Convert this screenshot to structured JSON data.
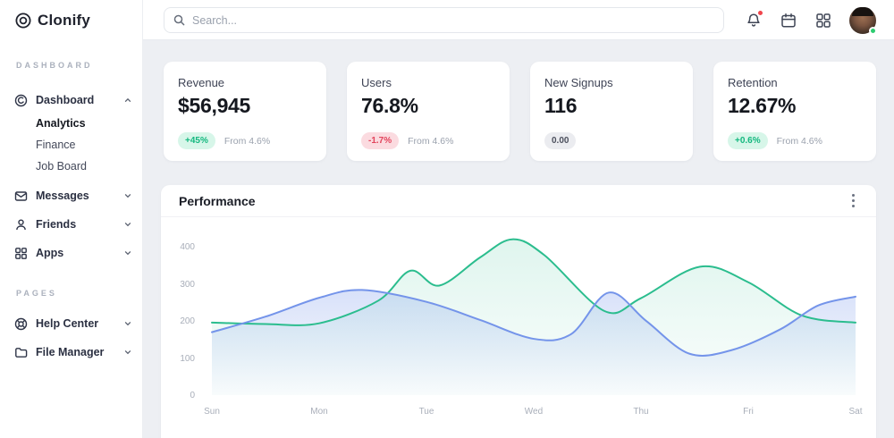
{
  "brand": {
    "name": "Clonify"
  },
  "topbar": {
    "search_placeholder": "Search...",
    "icons": [
      {
        "name": "bell-icon",
        "notification_dot": true
      },
      {
        "name": "calendar-icon"
      },
      {
        "name": "apps-grid-icon"
      }
    ],
    "avatar_status": "online"
  },
  "sidebar": {
    "sections": [
      {
        "label": "DASHBOARD"
      },
      {
        "label": "PAGES"
      }
    ],
    "items": [
      {
        "label": "Dashboard",
        "icon": "dashboard-icon",
        "expanded": true
      },
      {
        "label": "Analytics",
        "active": true
      },
      {
        "label": "Finance"
      },
      {
        "label": "Job Board"
      },
      {
        "label": "Messages",
        "icon": "mail-icon"
      },
      {
        "label": "Friends",
        "icon": "user-icon"
      },
      {
        "label": "Apps",
        "icon": "apps-icon"
      },
      {
        "label": "Help Center",
        "icon": "help-icon"
      },
      {
        "label": "File Manager",
        "icon": "folder-icon"
      }
    ]
  },
  "stats": [
    {
      "title": "Revenue",
      "value": "$56,945",
      "badge": "+45%",
      "badge_type": "positive",
      "note": "From 4.6%"
    },
    {
      "title": "Users",
      "value": "76.8%",
      "badge": "-1.7%",
      "badge_type": "negative",
      "note": "From 4.6%"
    },
    {
      "title": "New Signups",
      "value": "116",
      "badge": "0.00",
      "badge_type": "neutral",
      "note": ""
    },
    {
      "title": "Retention",
      "value": "12.67%",
      "badge": "+0.6%",
      "badge_type": "positive",
      "note": "From 4.6%"
    }
  ],
  "colors": {
    "green_line": "#2bbd8e",
    "blue_line": "#7494ea",
    "badge_green_bg": "#d7f6e9",
    "badge_green_text": "#14b87f",
    "badge_red_bg": "#fbdbe0",
    "badge_red_text": "#e2445c",
    "badge_gray_bg": "#ebecf0",
    "badge_gray_text": "#4d515e",
    "content_bg": "#edeff3"
  },
  "chart_data": {
    "type": "area",
    "title": "Performance",
    "x_labels": [
      "Sun",
      "Mon",
      "Tue",
      "Wed",
      "Thu",
      "Fri",
      "Sat"
    ],
    "y_ticks": [
      0,
      100,
      200,
      300,
      400
    ],
    "ylim": [
      0,
      450
    ],
    "grid": false,
    "legend": "none",
    "series": [
      {
        "name": "series-green",
        "color": "#2bbd8e",
        "fill_opacity": 0.15,
        "points": [
          [
            0,
            196
          ],
          [
            0.5,
            192
          ],
          [
            1,
            194
          ],
          [
            1.55,
            255
          ],
          [
            1.85,
            336
          ],
          [
            2.12,
            296
          ],
          [
            2.5,
            372
          ],
          [
            2.8,
            421
          ],
          [
            3.1,
            378
          ],
          [
            3.66,
            227
          ],
          [
            4.0,
            262
          ],
          [
            4.55,
            347
          ],
          [
            5,
            305
          ],
          [
            5.5,
            215
          ],
          [
            6,
            196
          ]
        ]
      },
      {
        "name": "series-blue",
        "color": "#7494ea",
        "fill_opacity": 0.28,
        "points": [
          [
            0,
            170
          ],
          [
            0.5,
            212
          ],
          [
            1,
            263
          ],
          [
            1.4,
            284
          ],
          [
            2,
            252
          ],
          [
            2.5,
            203
          ],
          [
            3,
            152
          ],
          [
            3.35,
            165
          ],
          [
            3.7,
            277
          ],
          [
            4.05,
            200
          ],
          [
            4.45,
            112
          ],
          [
            4.85,
            122
          ],
          [
            5.3,
            178
          ],
          [
            5.65,
            242
          ],
          [
            6,
            266
          ]
        ]
      }
    ]
  }
}
